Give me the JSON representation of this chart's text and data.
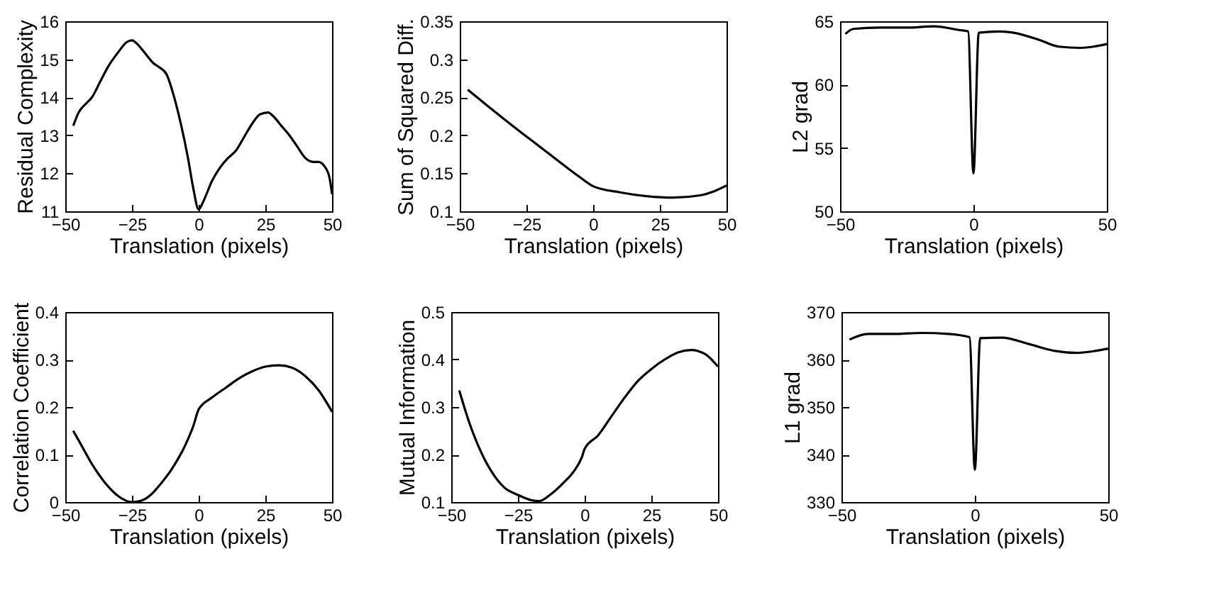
{
  "chart_data": [
    {
      "type": "line",
      "xlabel": "Translation (pixels)",
      "ylabel": "Residual Complexity",
      "color": "#000000",
      "xlim": [
        -50,
        50
      ],
      "ylim": [
        11,
        16
      ],
      "xticks": [
        -50,
        -25,
        0,
        25,
        50
      ],
      "yticks": [
        11,
        12,
        13,
        14,
        15,
        16
      ],
      "x": [
        -47,
        -45,
        -42,
        -40,
        -37,
        -34,
        -30,
        -27,
        -25,
        -23,
        -20,
        -17,
        -15,
        -12,
        -10,
        -7,
        -4,
        -2,
        0,
        2,
        5,
        8,
        11,
        14,
        17,
        20,
        23,
        26,
        28,
        31,
        34,
        37,
        40,
        43,
        45,
        47,
        49,
        50
      ],
      "values": [
        13.25,
        13.6,
        13.85,
        14.0,
        14.4,
        14.8,
        15.2,
        15.45,
        15.5,
        15.4,
        15.15,
        14.9,
        14.8,
        14.6,
        14.2,
        13.4,
        12.4,
        11.6,
        11.05,
        11.3,
        11.8,
        12.15,
        12.4,
        12.6,
        12.95,
        13.3,
        13.55,
        13.6,
        13.5,
        13.25,
        13.0,
        12.7,
        12.4,
        12.3,
        12.3,
        12.2,
        11.9,
        11.45
      ]
    },
    {
      "type": "line",
      "xlabel": "Translation (pixels)",
      "ylabel": "Sum of Squared Diff.",
      "color": "#000000",
      "xlim": [
        -50,
        50
      ],
      "ylim": [
        0.1,
        0.35
      ],
      "xticks": [
        -50,
        -25,
        0,
        25,
        50
      ],
      "yticks": [
        0.1,
        0.15,
        0.2,
        0.25,
        0.3,
        0.35
      ],
      "x": [
        -47,
        -40,
        -30,
        -20,
        -10,
        -5,
        0,
        10,
        20,
        30,
        40,
        45,
        50
      ],
      "values": [
        0.26,
        0.24,
        0.212,
        0.185,
        0.158,
        0.145,
        0.133,
        0.125,
        0.12,
        0.118,
        0.121,
        0.126,
        0.134
      ]
    },
    {
      "type": "line",
      "xlabel": "Translation (pixels)",
      "ylabel": "L2 grad",
      "color": "#000000",
      "xlim": [
        -50,
        50
      ],
      "ylim": [
        50,
        65
      ],
      "xticks": [
        -50,
        0,
        50
      ],
      "yticks": [
        50,
        55,
        60,
        65
      ],
      "x": [
        -48,
        -45,
        -35,
        -25,
        -15,
        -5,
        -2,
        0,
        2,
        10,
        15,
        25,
        32,
        40,
        45,
        50
      ],
      "values": [
        64.0,
        64.4,
        64.5,
        64.5,
        64.6,
        64.3,
        64.2,
        53,
        64.1,
        64.2,
        64.1,
        63.5,
        63.0,
        62.9,
        63.0,
        63.2
      ]
    },
    {
      "type": "line",
      "xlabel": "Translation (pixels)",
      "ylabel": "Correlation Coefficient",
      "color": "#000000",
      "xlim": [
        -50,
        50
      ],
      "ylim": [
        0,
        0.4
      ],
      "xticks": [
        -50,
        -25,
        0,
        25,
        50
      ],
      "yticks": [
        0,
        0.1,
        0.2,
        0.3,
        0.4
      ],
      "x": [
        -47,
        -44,
        -40,
        -35,
        -30,
        -25,
        -22,
        -18,
        -14,
        -10,
        -5,
        -2,
        0,
        5,
        10,
        15,
        20,
        25,
        30,
        35,
        40,
        45,
        50
      ],
      "values": [
        0.15,
        0.12,
        0.08,
        0.04,
        0.012,
        0.0,
        0.002,
        0.015,
        0.04,
        0.07,
        0.12,
        0.16,
        0.195,
        0.22,
        0.24,
        0.26,
        0.275,
        0.285,
        0.288,
        0.283,
        0.265,
        0.235,
        0.19
      ]
    },
    {
      "type": "line",
      "xlabel": "Translation (pixels)",
      "ylabel": "Mutual Information",
      "color": "#000000",
      "xlim": [
        -50,
        50
      ],
      "ylim": [
        0.1,
        0.5
      ],
      "xticks": [
        -50,
        -25,
        0,
        25,
        50
      ],
      "yticks": [
        0.1,
        0.2,
        0.3,
        0.4,
        0.5
      ],
      "x": [
        -47,
        -44,
        -40,
        -35,
        -30,
        -25,
        -20,
        -17,
        -13,
        -8,
        -4,
        -1,
        0,
        5,
        10,
        15,
        20,
        25,
        30,
        35,
        40,
        45,
        50
      ],
      "values": [
        0.335,
        0.28,
        0.22,
        0.165,
        0.13,
        0.115,
        0.104,
        0.102,
        0.115,
        0.14,
        0.165,
        0.195,
        0.212,
        0.24,
        0.28,
        0.32,
        0.355,
        0.38,
        0.4,
        0.415,
        0.42,
        0.412,
        0.385
      ]
    },
    {
      "type": "line",
      "xlabel": "Translation (pixels)",
      "ylabel": "L1 grad",
      "color": "#000000",
      "xlim": [
        -50,
        50
      ],
      "ylim": [
        330,
        370
      ],
      "xticks": [
        -50,
        0,
        50
      ],
      "yticks": [
        330,
        340,
        350,
        360,
        370
      ],
      "x": [
        -47,
        -40,
        -30,
        -20,
        -10,
        -2,
        0,
        2,
        10,
        20,
        30,
        38,
        45,
        50
      ],
      "values": [
        364.2,
        365.4,
        365.4,
        365.6,
        365.4,
        364.7,
        336.8,
        364.5,
        364.6,
        363.3,
        361.8,
        361.4,
        361.8,
        362.3
      ]
    }
  ]
}
